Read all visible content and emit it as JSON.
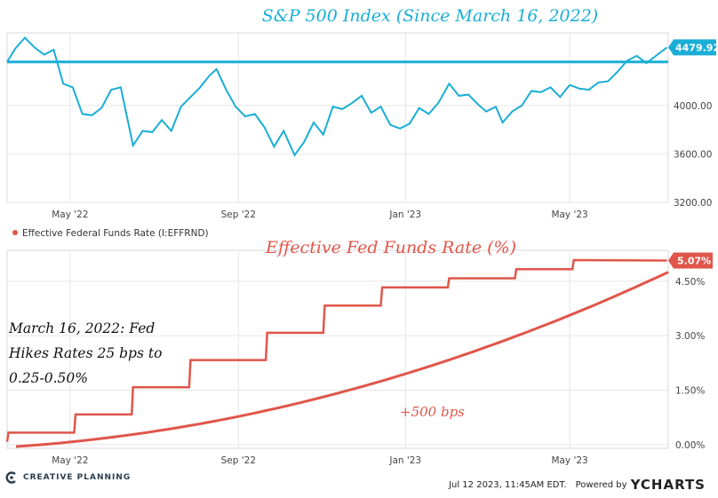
{
  "colors": {
    "sp_line": "#1aaed6",
    "fed_line": "#e0564a",
    "grid": "#e6e6e6",
    "title_blue": "#1aaed6",
    "title_red": "#e0564a",
    "brand": "#2c3e50"
  },
  "chart_data": [
    {
      "type": "line",
      "title": "S&P 500 Index (Since March 16, 2022)",
      "x_tick_labels": [
        "May '22",
        "Sep '22",
        "Jan '23",
        "May '23"
      ],
      "y_tick_labels": [
        "4000.00",
        "3600.00",
        "3200.00"
      ],
      "ylim": [
        3200,
        4600
      ],
      "reference_line": 4360,
      "last_value_label": "4479.92",
      "series": [
        {
          "x": [
            "2022-03-16",
            "2022-03-22",
            "2022-03-29",
            "2022-04-05",
            "2022-04-12",
            "2022-04-19",
            "2022-04-26",
            "2022-05-03",
            "2022-05-10",
            "2022-05-17",
            "2022-05-24",
            "2022-05-31",
            "2022-06-07",
            "2022-06-16",
            "2022-06-23",
            "2022-06-30",
            "2022-07-07",
            "2022-07-14",
            "2022-07-21",
            "2022-07-28",
            "2022-08-04",
            "2022-08-11",
            "2022-08-16",
            "2022-08-23",
            "2022-08-30",
            "2022-09-06",
            "2022-09-13",
            "2022-09-20",
            "2022-09-27",
            "2022-10-04",
            "2022-10-12",
            "2022-10-19",
            "2022-10-26",
            "2022-11-02",
            "2022-11-09",
            "2022-11-16",
            "2022-11-23",
            "2022-11-30",
            "2022-12-07",
            "2022-12-14",
            "2022-12-21",
            "2022-12-28",
            "2023-01-04",
            "2023-01-11",
            "2023-01-18",
            "2023-01-25",
            "2023-02-02",
            "2023-02-09",
            "2023-02-16",
            "2023-02-23",
            "2023-03-01",
            "2023-03-08",
            "2023-03-13",
            "2023-03-20",
            "2023-03-27",
            "2023-04-03",
            "2023-04-10",
            "2023-04-17",
            "2023-04-24",
            "2023-05-01",
            "2023-05-08",
            "2023-05-15",
            "2023-05-22",
            "2023-05-29",
            "2023-06-05",
            "2023-06-12",
            "2023-06-19",
            "2023-06-26",
            "2023-07-03",
            "2023-07-11"
          ],
          "values": [
            4360,
            4470,
            4560,
            4480,
            4420,
            4460,
            4180,
            4150,
            3930,
            3920,
            3980,
            4130,
            4150,
            3670,
            3790,
            3780,
            3880,
            3790,
            3990,
            4070,
            4150,
            4250,
            4300,
            4130,
            3990,
            3910,
            3930,
            3820,
            3660,
            3790,
            3590,
            3700,
            3860,
            3760,
            3990,
            3970,
            4020,
            4080,
            3940,
            3990,
            3840,
            3810,
            3850,
            3980,
            3930,
            4020,
            4180,
            4080,
            4090,
            4010,
            3950,
            3990,
            3860,
            3950,
            4000,
            4120,
            4110,
            4150,
            4070,
            4170,
            4140,
            4130,
            4190,
            4200,
            4280,
            4370,
            4410,
            4350,
            4410,
            4480
          ]
        }
      ]
    },
    {
      "type": "line",
      "title": "Effective Fed Funds Rate (%)",
      "x_tick_labels": [
        "May '22",
        "Sep '22",
        "Jan '23",
        "May '23"
      ],
      "y_tick_labels": [
        "4.50%",
        "3.00%",
        "1.50%",
        "0.00%"
      ],
      "ylim": [
        -0.1,
        5.35
      ],
      "legend": "Effective Federal Funds Rate (I:EFFRND)",
      "last_value_label": "5.07%",
      "annotations": [
        "March 16, 2022: Fed",
        "Hikes Rates 25 bps to",
        "0.25-0.50%",
        "+500 bps"
      ],
      "series": [
        {
          "x": [
            "2022-03-16",
            "2022-03-17",
            "2022-05-04",
            "2022-05-05",
            "2022-06-15",
            "2022-06-16",
            "2022-07-27",
            "2022-07-28",
            "2022-09-21",
            "2022-09-22",
            "2022-11-02",
            "2022-11-03",
            "2022-12-14",
            "2022-12-15",
            "2023-02-01",
            "2023-02-02",
            "2023-03-22",
            "2023-03-23",
            "2023-05-03",
            "2023-05-04",
            "2023-07-11"
          ],
          "values": [
            0.08,
            0.33,
            0.33,
            0.83,
            0.83,
            1.58,
            1.58,
            2.33,
            2.33,
            3.08,
            3.08,
            3.83,
            3.83,
            4.33,
            4.33,
            4.58,
            4.58,
            4.83,
            4.83,
            5.08,
            5.07
          ]
        }
      ]
    }
  ],
  "footer": {
    "brand_name": "CREATIVE PLANNING",
    "timestamp": "Jul 12 2023, 11:45AM EDT.",
    "powered_by": "Powered by",
    "ycharts": "YCHARTS"
  }
}
